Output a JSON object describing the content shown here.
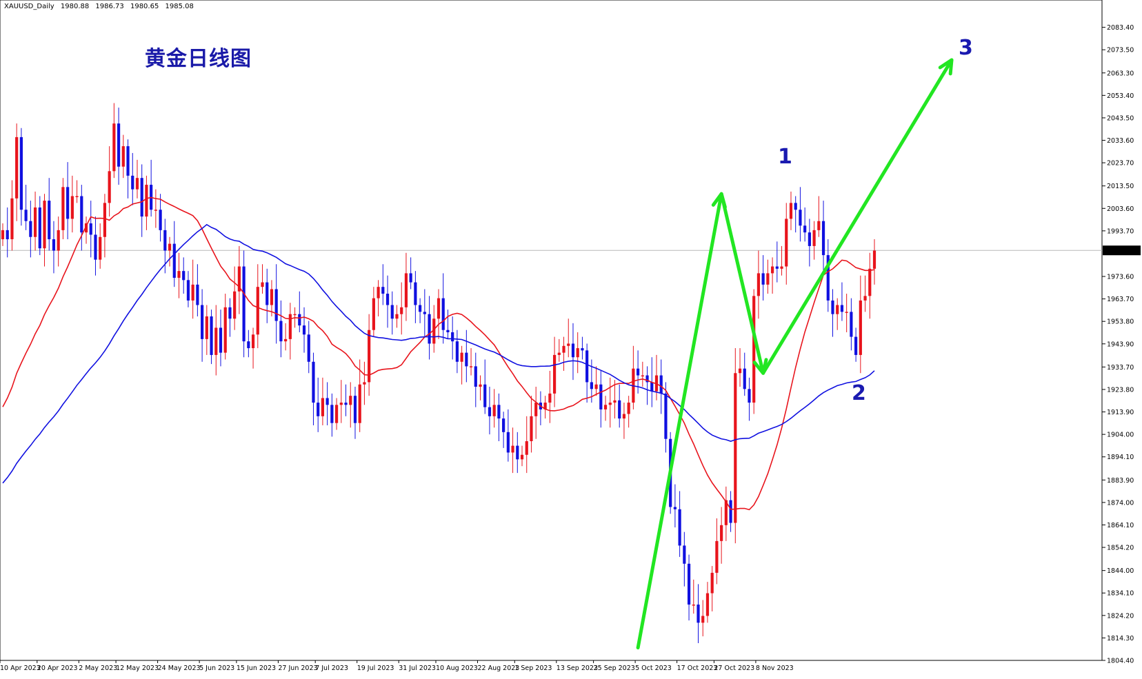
{
  "header": {
    "symbol": "XAUUSD_Daily",
    "open": "1980.88",
    "high": "1986.73",
    "low": "1980.65",
    "close": "1985.08"
  },
  "title": "黄金日线图",
  "wave_labels": [
    "1",
    "2",
    "3"
  ],
  "colors": {
    "bull": "#e8141c",
    "bear": "#1010e0",
    "ma_fast": "#e8141c",
    "ma_slow": "#1010e0",
    "arrow": "#22e622",
    "text_blue": "#1a1ab0",
    "current_price_bg": "#000000"
  },
  "chart_data": {
    "type": "candlestick",
    "symbol": "XAUUSD_Daily",
    "timeframe": "Daily",
    "y_ticks": [
      "2083.40",
      "2073.50",
      "2063.30",
      "2053.40",
      "2043.50",
      "2033.60",
      "2023.70",
      "2013.50",
      "2003.60",
      "1993.70",
      "1973.60",
      "1963.70",
      "1953.80",
      "1943.90",
      "1933.70",
      "1923.80",
      "1913.90",
      "1904.00",
      "1894.10",
      "1883.90",
      "1874.00",
      "1864.10",
      "1854.20",
      "1844.00",
      "1834.10",
      "1824.20",
      "1814.30",
      "1804.40"
    ],
    "current_price": "1985.08",
    "x_ticks": [
      "10 Apr 2023",
      "20 Apr 2023",
      "2 May 2023",
      "12 May 2023",
      "24 May 2023",
      "5 Jun 2023",
      "15 Jun 2023",
      "27 Jun 2023",
      "7 Jul 2023",
      "19 Jul 2023",
      "31 Jul 2023",
      "10 Aug 2023",
      "22 Aug 2023",
      "1 Sep 2023",
      "13 Sep 2023",
      "25 Sep 2023",
      "5 Oct 2023",
      "17 Oct 2023",
      "27 Oct 2023",
      "8 Nov 2023"
    ],
    "ylim": [
      1804.4,
      2093.0
    ],
    "closes": [
      1994,
      1990,
      2008,
      2035,
      2003,
      1998,
      1991,
      2004,
      1986,
      2007,
      1990,
      1985,
      1994,
      2013,
      1999,
      2009,
      2009,
      1993,
      1997,
      1992,
      1981,
      1991,
      2006,
      2020,
      2041,
      2022,
      2031,
      2018,
      2012,
      2017,
      2000,
      2014,
      2003,
      2003,
      1994,
      1985,
      1988,
      1973,
      1976,
      1972,
      1963,
      1970,
      1961,
      1946,
      1956,
      1939,
      1951,
      1940,
      1960,
      1955,
      1967,
      1978,
      1945,
      1942,
      1948,
      1969,
      1971,
      1961,
      1968,
      1954,
      1945,
      1946,
      1957,
      1957,
      1952,
      1948,
      1936,
      1918,
      1912,
      1920,
      1917,
      1909,
      1917,
      1918,
      1917,
      1921,
      1909,
      1926,
      1927,
      1950,
      1964,
      1969,
      1966,
      1961,
      1955,
      1957,
      1960,
      1975,
      1971,
      1961,
      1958,
      1957,
      1944,
      1955,
      1964,
      1950,
      1949,
      1945,
      1936,
      1940,
      1934,
      1934,
      1925,
      1926,
      1916,
      1912,
      1917,
      1911,
      1905,
      1896,
      1899,
      1893,
      1895,
      1901,
      1912,
      1918,
      1915,
      1918,
      1922,
      1939,
      1940,
      1943,
      1944,
      1938,
      1942,
      1941,
      1927,
      1924,
      1926,
      1915,
      1917,
      1918,
      1919,
      1911,
      1913,
      1918,
      1933,
      1930,
      1930,
      1927,
      1923,
      1930,
      1922,
      1902,
      1872,
      1871,
      1855,
      1847,
      1829,
      1829,
      1821,
      1824,
      1834,
      1843,
      1857,
      1864,
      1875,
      1865,
      1931,
      1933,
      1924,
      1918,
      1965,
      1975,
      1970,
      1975,
      1978,
      1977,
      1978,
      1999,
      2006,
      2003,
      1996,
      1993,
      1987,
      1994,
      1998,
      1983,
      1963,
      1957,
      1961,
      1958,
      1958,
      1947,
      1939,
      1963,
      1965,
      1977,
      1985
    ],
    "ma_red_start": 1912.0,
    "ma_blue_start": 1880.0,
    "wave_points": {
      "p0": {
        "date": "5 Oct 2023",
        "price": 1810
      },
      "p1": {
        "date": "27 Oct 2023",
        "price": 2010
      },
      "p2": {
        "date": "8 Nov 2023",
        "price": 1931
      },
      "p3": {
        "price": 2069
      }
    }
  }
}
